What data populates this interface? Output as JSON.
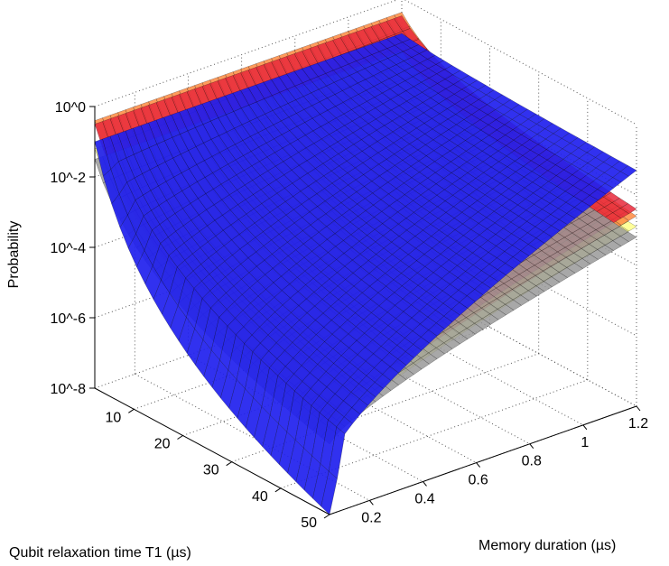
{
  "chart_data": {
    "type": "surface3d",
    "title": "",
    "zlabel": "Probability",
    "xlabel": "Qubit relaxation time T1 (µs)",
    "ylabel": "Memory duration (µs)",
    "z_scale": "log",
    "z_tick_labels": [
      "10^-8",
      "10^-6",
      "10^-4",
      "10^-2",
      "10^0"
    ],
    "z_ticks_log10": [
      -8,
      -6,
      -4,
      -2,
      0
    ],
    "x_ticks": [
      10,
      20,
      30,
      40,
      50
    ],
    "x_tick_labels": [
      "10",
      "20",
      "30",
      "40",
      "50"
    ],
    "y_ticks": [
      0.2,
      0.4,
      0.6,
      0.8,
      1.0,
      1.2
    ],
    "y_tick_labels": [
      "0.2",
      "0.4",
      "0.6",
      "0.8",
      "1",
      "1.2"
    ],
    "xlim": [
      2,
      50
    ],
    "ylim": [
      0.05,
      1.2
    ],
    "zlim_log10": [
      -8,
      0
    ],
    "grid": true,
    "surfaces": [
      {
        "name": "yellow surface",
        "color": "#ffff88",
        "log10_at_T1_min": -1.2,
        "log10_at_T1_max": -5.8,
        "log10_at_mem_max_T1_max": -2.9
      },
      {
        "name": "orange surface",
        "color": "#ff8a40",
        "log10_at_T1_min": -0.4,
        "log10_at_T1_max": -5.5,
        "log10_at_mem_max_T1_max": -2.6
      },
      {
        "name": "red surface",
        "color": "#e8283a",
        "log10_at_T1_min": -0.5,
        "log10_at_T1_max": -5.4,
        "log10_at_mem_max_T1_max": -2.4
      },
      {
        "name": "gray surface",
        "color": "#999999",
        "log10_at_T1_min": -1.5,
        "log10_at_T1_max": -6.0,
        "log10_at_mem_max_T1_max": -3.2
      },
      {
        "name": "blue surface",
        "color": "#2020ee",
        "log10_at_T1_min": -1.0,
        "log10_at_T1_max": -6.5,
        "log10_at_mem_max_T1_max": -1.3,
        "log10_at_mem_min_T1_max": -8.0
      }
    ]
  }
}
